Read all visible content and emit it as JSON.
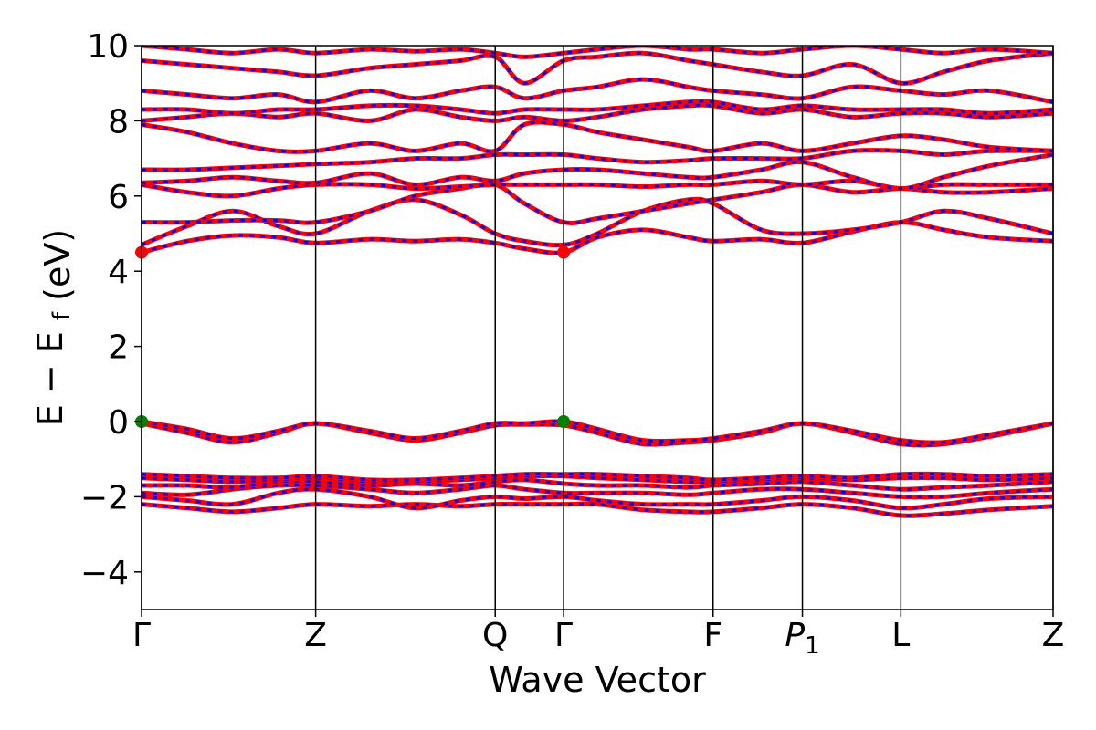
{
  "chart_data": {
    "type": "line",
    "title": "",
    "xlabel": "Wave Vector",
    "ylabel": {
      "main": "E − E",
      "sub": "f",
      "unit": "(eV)"
    },
    "ylim": [
      -5,
      10
    ],
    "yticks": [
      -4,
      -2,
      0,
      2,
      4,
      6,
      8,
      10
    ],
    "ytick_labels": [
      "−4",
      "−2",
      "0",
      "2",
      "4",
      "6",
      "8",
      "10"
    ],
    "xlim": [
      0,
      1
    ],
    "kpoints": [
      {
        "pos": 0.0,
        "label": "Γ",
        "sub": ""
      },
      {
        "pos": 0.191,
        "label": "Z",
        "sub": ""
      },
      {
        "pos": 0.388,
        "label": "Q",
        "sub": ""
      },
      {
        "pos": 0.463,
        "label": "Γ",
        "sub": ""
      },
      {
        "pos": 0.627,
        "label": "F",
        "sub": ""
      },
      {
        "pos": 0.725,
        "label": "P",
        "sub": "1"
      },
      {
        "pos": 0.833,
        "label": "L",
        "sub": ""
      },
      {
        "pos": 1.0,
        "label": "Z",
        "sub": ""
      }
    ],
    "line_colors": {
      "spin_a": "#ff0000",
      "spin_b": "#0000ff"
    },
    "markers": [
      {
        "name": "conduction band minimum",
        "x": 0.0,
        "y": 4.5,
        "color": "#ff0000"
      },
      {
        "name": "conduction band minimum",
        "x": 0.463,
        "y": 4.5,
        "color": "#ff0000"
      },
      {
        "name": "valence band maximum",
        "x": 0.0,
        "y": 0.0,
        "color": "#008000"
      },
      {
        "name": "valence band maximum",
        "x": 0.463,
        "y": 0.0,
        "color": "#008000"
      }
    ],
    "series": [
      {
        "x": [
          0,
          0.05,
          0.1,
          0.15,
          0.191,
          0.25,
          0.3,
          0.35,
          0.388,
          0.42,
          0.463,
          0.5,
          0.55,
          0.6,
          0.627,
          0.68,
          0.725,
          0.78,
          0.833,
          0.88,
          0.93,
          1.0
        ],
        "y": [
          -2.2,
          -2.3,
          -2.4,
          -2.3,
          -2.2,
          -2.25,
          -2.2,
          -2.25,
          -2.2,
          -2.2,
          -2.2,
          -2.2,
          -2.35,
          -2.4,
          -2.4,
          -2.3,
          -2.2,
          -2.3,
          -2.5,
          -2.45,
          -2.35,
          -2.25
        ]
      },
      {
        "x": [
          0,
          0.05,
          0.1,
          0.15,
          0.191,
          0.25,
          0.3,
          0.35,
          0.388,
          0.42,
          0.463,
          0.5,
          0.55,
          0.6,
          0.627,
          0.68,
          0.725,
          0.78,
          0.833,
          0.88,
          0.93,
          1.0
        ],
        "y": [
          -2.0,
          -2.1,
          -2.2,
          -1.9,
          -1.8,
          -2.0,
          -2.3,
          -2.1,
          -2.0,
          -2.05,
          -2.0,
          -2.1,
          -2.2,
          -2.2,
          -2.2,
          -2.1,
          -2.0,
          -2.1,
          -2.3,
          -2.2,
          -2.05,
          -2.0
        ]
      },
      {
        "x": [
          0,
          0.05,
          0.1,
          0.15,
          0.191,
          0.25,
          0.3,
          0.35,
          0.388,
          0.42,
          0.463,
          0.5,
          0.55,
          0.6,
          0.627,
          0.68,
          0.725,
          0.78,
          0.833,
          0.88,
          0.93,
          1.0
        ],
        "y": [
          -1.9,
          -1.95,
          -1.8,
          -1.7,
          -1.7,
          -1.8,
          -1.9,
          -1.8,
          -1.7,
          -1.8,
          -1.9,
          -1.9,
          -1.9,
          -1.95,
          -1.9,
          -1.8,
          -1.8,
          -1.9,
          -2.0,
          -2.0,
          -1.9,
          -1.8
        ]
      },
      {
        "x": [
          0,
          0.05,
          0.1,
          0.15,
          0.191,
          0.25,
          0.3,
          0.35,
          0.388,
          0.42,
          0.463,
          0.5,
          0.55,
          0.6,
          0.627,
          0.68,
          0.725,
          0.78,
          0.833,
          0.88,
          0.93,
          1.0
        ],
        "y": [
          -1.7,
          -1.7,
          -1.75,
          -1.6,
          -1.6,
          -1.7,
          -1.65,
          -1.7,
          -1.6,
          -1.55,
          -1.65,
          -1.7,
          -1.7,
          -1.75,
          -1.7,
          -1.65,
          -1.6,
          -1.7,
          -1.8,
          -1.75,
          -1.7,
          -1.6
        ]
      },
      {
        "x": [
          0,
          0.05,
          0.1,
          0.15,
          0.191,
          0.25,
          0.3,
          0.35,
          0.388,
          0.42,
          0.463,
          0.5,
          0.55,
          0.6,
          0.627,
          0.68,
          0.725,
          0.78,
          0.833,
          0.88,
          0.93,
          1.0
        ],
        "y": [
          -1.5,
          -1.55,
          -1.6,
          -1.55,
          -1.5,
          -1.6,
          -1.6,
          -1.55,
          -1.5,
          -1.45,
          -1.45,
          -1.5,
          -1.55,
          -1.6,
          -1.6,
          -1.55,
          -1.5,
          -1.55,
          -1.5,
          -1.5,
          -1.55,
          -1.5
        ]
      },
      {
        "x": [
          0,
          0.05,
          0.1,
          0.15,
          0.191,
          0.25,
          0.3,
          0.35,
          0.388,
          0.42,
          0.463,
          0.5,
          0.55,
          0.6,
          0.627,
          0.68,
          0.725,
          0.78,
          0.833,
          0.88,
          0.93,
          1.0
        ],
        "y": [
          -1.4,
          -1.45,
          -1.5,
          -1.5,
          -1.45,
          -1.55,
          -1.55,
          -1.5,
          -1.45,
          -1.4,
          -1.4,
          -1.4,
          -1.45,
          -1.5,
          -1.55,
          -1.5,
          -1.45,
          -1.5,
          -1.4,
          -1.4,
          -1.45,
          -1.4
        ]
      },
      {
        "x": [
          0,
          0.05,
          0.1,
          0.15,
          0.191,
          0.25,
          0.3,
          0.35,
          0.388,
          0.42,
          0.463,
          0.5,
          0.55,
          0.6,
          0.627,
          0.68,
          0.725,
          0.78,
          0.833,
          0.88,
          0.93,
          1.0
        ],
        "y": [
          -0.05,
          -0.3,
          -0.55,
          -0.3,
          -0.05,
          -0.3,
          -0.5,
          -0.3,
          -0.1,
          -0.08,
          -0.1,
          -0.3,
          -0.6,
          -0.55,
          -0.5,
          -0.3,
          -0.05,
          -0.3,
          -0.6,
          -0.6,
          -0.4,
          -0.05
        ]
      },
      {
        "x": [
          0,
          0.05,
          0.1,
          0.15,
          0.191,
          0.25,
          0.3,
          0.35,
          0.388,
          0.42,
          0.463,
          0.5,
          0.55,
          0.6,
          0.627,
          0.68,
          0.725,
          0.78,
          0.833,
          0.88,
          0.93,
          1.0
        ],
        "y": [
          0.0,
          -0.2,
          -0.45,
          -0.25,
          -0.05,
          -0.25,
          -0.45,
          -0.25,
          -0.05,
          -0.05,
          0.0,
          -0.2,
          -0.5,
          -0.5,
          -0.45,
          -0.25,
          -0.05,
          -0.25,
          -0.5,
          -0.55,
          -0.35,
          -0.05
        ]
      },
      {
        "x": [
          0,
          0.05,
          0.1,
          0.15,
          0.191,
          0.25,
          0.3,
          0.35,
          0.388,
          0.42,
          0.463,
          0.5,
          0.55,
          0.6,
          0.627,
          0.68,
          0.725,
          0.78,
          0.833,
          0.88,
          0.93,
          1.0
        ],
        "y": [
          4.5,
          4.8,
          4.95,
          4.9,
          4.75,
          4.85,
          4.8,
          4.85,
          4.75,
          4.6,
          4.5,
          4.9,
          5.1,
          4.9,
          4.8,
          4.85,
          4.75,
          5.05,
          5.3,
          5.1,
          4.9,
          4.8
        ]
      },
      {
        "x": [
          0,
          0.05,
          0.1,
          0.15,
          0.191,
          0.25,
          0.3,
          0.35,
          0.388,
          0.42,
          0.463,
          0.5,
          0.55,
          0.6,
          0.627,
          0.68,
          0.725,
          0.78,
          0.833,
          0.88,
          0.93,
          1.0
        ],
        "y": [
          4.7,
          5.2,
          5.6,
          5.2,
          5.0,
          5.6,
          5.9,
          5.5,
          5.0,
          4.8,
          4.7,
          5.0,
          5.6,
          5.9,
          5.8,
          5.1,
          5.0,
          5.1,
          5.3,
          5.6,
          5.4,
          5.0
        ]
      },
      {
        "x": [
          0,
          0.05,
          0.1,
          0.15,
          0.191,
          0.25,
          0.3,
          0.35,
          0.388,
          0.42,
          0.463,
          0.5,
          0.55,
          0.6,
          0.627,
          0.68,
          0.725,
          0.78,
          0.833,
          0.88,
          0.93,
          1.0
        ],
        "y": [
          5.3,
          5.3,
          5.35,
          5.35,
          5.3,
          5.6,
          6.0,
          6.2,
          6.3,
          5.8,
          5.3,
          5.4,
          5.6,
          5.8,
          5.9,
          6.1,
          6.3,
          6.1,
          6.2,
          6.1,
          6.1,
          6.2
        ]
      },
      {
        "x": [
          0,
          0.05,
          0.1,
          0.15,
          0.191,
          0.25,
          0.3,
          0.35,
          0.388,
          0.42,
          0.463,
          0.5,
          0.55,
          0.6,
          0.627,
          0.68,
          0.725,
          0.78,
          0.833,
          0.88,
          0.93,
          1.0
        ],
        "y": [
          6.3,
          6.1,
          6.0,
          6.2,
          6.3,
          6.3,
          6.2,
          6.25,
          6.3,
          6.3,
          6.3,
          6.3,
          6.25,
          6.3,
          6.3,
          6.4,
          6.3,
          6.4,
          6.2,
          6.3,
          6.3,
          6.3
        ]
      },
      {
        "x": [
          0,
          0.05,
          0.1,
          0.15,
          0.191,
          0.25,
          0.3,
          0.35,
          0.388,
          0.42,
          0.463,
          0.5,
          0.55,
          0.6,
          0.627,
          0.68,
          0.725,
          0.78,
          0.833,
          0.88,
          0.93,
          1.0
        ],
        "y": [
          6.35,
          6.4,
          6.5,
          6.4,
          6.35,
          6.6,
          6.3,
          6.5,
          6.4,
          6.6,
          6.7,
          6.7,
          6.6,
          6.5,
          6.5,
          6.7,
          6.9,
          6.5,
          6.2,
          6.5,
          6.8,
          7.1
        ]
      },
      {
        "x": [
          0,
          0.05,
          0.1,
          0.15,
          0.191,
          0.25,
          0.3,
          0.35,
          0.388,
          0.42,
          0.463,
          0.5,
          0.55,
          0.6,
          0.627,
          0.68,
          0.725,
          0.78,
          0.833,
          0.88,
          0.93,
          1.0
        ],
        "y": [
          6.7,
          6.7,
          6.75,
          6.8,
          6.85,
          6.9,
          7.0,
          7.0,
          7.1,
          7.1,
          7.1,
          7.0,
          6.9,
          6.95,
          7.0,
          7.0,
          7.0,
          7.2,
          7.2,
          7.1,
          7.2,
          7.2
        ]
      },
      {
        "x": [
          0,
          0.05,
          0.1,
          0.15,
          0.191,
          0.25,
          0.3,
          0.35,
          0.388,
          0.42,
          0.463,
          0.5,
          0.55,
          0.6,
          0.627,
          0.68,
          0.725,
          0.78,
          0.833,
          0.88,
          0.93,
          1.0
        ],
        "y": [
          7.9,
          7.7,
          7.4,
          7.2,
          7.2,
          7.4,
          7.2,
          7.4,
          7.2,
          7.9,
          7.9,
          7.7,
          7.5,
          7.3,
          7.2,
          7.4,
          7.2,
          7.4,
          7.6,
          7.5,
          7.3,
          7.2
        ]
      },
      {
        "x": [
          0,
          0.05,
          0.1,
          0.15,
          0.191,
          0.25,
          0.3,
          0.35,
          0.388,
          0.42,
          0.463,
          0.5,
          0.55,
          0.6,
          0.627,
          0.68,
          0.725,
          0.78,
          0.833,
          0.88,
          0.93,
          1.0
        ],
        "y": [
          8.0,
          8.1,
          8.2,
          8.1,
          8.2,
          8.0,
          8.3,
          8.1,
          8.0,
          8.1,
          8.0,
          8.1,
          8.3,
          8.4,
          8.4,
          8.2,
          8.3,
          8.1,
          8.2,
          8.2,
          8.1,
          8.2
        ]
      },
      {
        "x": [
          0,
          0.05,
          0.1,
          0.15,
          0.191,
          0.25,
          0.3,
          0.35,
          0.388,
          0.42,
          0.463,
          0.5,
          0.55,
          0.6,
          0.627,
          0.68,
          0.725,
          0.78,
          0.833,
          0.88,
          0.93,
          1.0
        ],
        "y": [
          8.3,
          8.3,
          8.2,
          8.3,
          8.3,
          8.4,
          8.4,
          8.3,
          8.2,
          8.3,
          8.3,
          8.3,
          8.4,
          8.5,
          8.5,
          8.3,
          8.4,
          8.3,
          8.3,
          8.3,
          8.2,
          8.3
        ]
      },
      {
        "x": [
          0,
          0.05,
          0.1,
          0.15,
          0.191,
          0.25,
          0.3,
          0.35,
          0.388,
          0.42,
          0.463,
          0.5,
          0.55,
          0.6,
          0.627,
          0.68,
          0.725,
          0.78,
          0.833,
          0.88,
          0.93,
          1.0
        ],
        "y": [
          8.8,
          8.7,
          8.6,
          8.7,
          8.5,
          8.8,
          8.6,
          8.8,
          8.9,
          8.6,
          8.8,
          8.9,
          9.1,
          8.9,
          8.8,
          8.7,
          8.6,
          8.9,
          8.8,
          8.7,
          8.8,
          8.5
        ]
      },
      {
        "x": [
          0,
          0.05,
          0.1,
          0.15,
          0.191,
          0.25,
          0.3,
          0.35,
          0.388,
          0.42,
          0.463,
          0.5,
          0.55,
          0.6,
          0.627,
          0.68,
          0.725,
          0.78,
          0.833,
          0.88,
          0.93,
          1.0
        ],
        "y": [
          9.6,
          9.5,
          9.4,
          9.3,
          9.2,
          9.4,
          9.5,
          9.6,
          9.7,
          9.0,
          9.6,
          9.7,
          9.8,
          9.6,
          9.5,
          9.3,
          9.2,
          9.5,
          9.0,
          9.3,
          9.6,
          9.8
        ]
      },
      {
        "x": [
          0,
          0.05,
          0.1,
          0.15,
          0.191,
          0.25,
          0.3,
          0.35,
          0.388,
          0.42,
          0.463,
          0.5,
          0.55,
          0.6,
          0.627,
          0.68,
          0.725,
          0.78,
          0.833,
          0.88,
          0.93,
          1.0
        ],
        "y": [
          10.0,
          9.9,
          9.8,
          9.9,
          9.8,
          9.9,
          9.85,
          9.9,
          9.8,
          9.7,
          9.8,
          9.9,
          10.0,
          9.9,
          9.9,
          9.8,
          9.9,
          10.0,
          9.9,
          9.8,
          9.9,
          9.8
        ]
      }
    ]
  }
}
